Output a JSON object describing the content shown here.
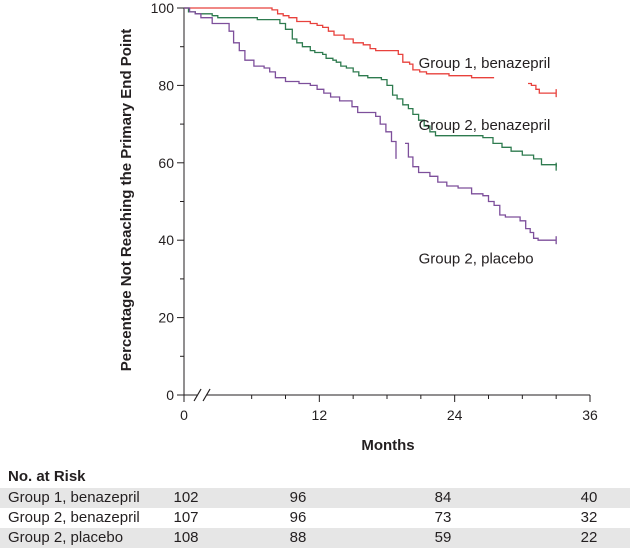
{
  "chart_data": {
    "type": "line",
    "xlabel": "Months",
    "ylabel": "Percentage Not Reaching the Primary End Point",
    "xlim": [
      0,
      36
    ],
    "ylim": [
      0,
      100
    ],
    "x_ticks": [
      "0",
      "12",
      "24",
      "36"
    ],
    "y_ticks": [
      "0",
      "20",
      "40",
      "60",
      "80",
      "100"
    ],
    "axis_break_on_x": true,
    "grid": false,
    "series": [
      {
        "name": "Group 1, benazepril",
        "color": "#e8413c",
        "segments": [
          [
            [
              0,
              100
            ],
            [
              7.5,
              100
            ],
            [
              7.8,
              99.5
            ],
            [
              8.3,
              98.5
            ],
            [
              8.8,
              98
            ],
            [
              9.3,
              97.5
            ],
            [
              10,
              96.5
            ],
            [
              11.2,
              96
            ],
            [
              11.8,
              95.5
            ],
            [
              12.3,
              95
            ],
            [
              12.8,
              94
            ],
            [
              13.3,
              93
            ],
            [
              14.2,
              92
            ],
            [
              15,
              91
            ],
            [
              15.9,
              90.5
            ],
            [
              16.5,
              89.5
            ],
            [
              17,
              89
            ],
            [
              18.6,
              89
            ],
            [
              19,
              88
            ],
            [
              19.4,
              86
            ],
            [
              20,
              85.5
            ],
            [
              20.3,
              84
            ],
            [
              20.9,
              83.5
            ],
            [
              21.5,
              83
            ],
            [
              23.5,
              82.5
            ],
            [
              24.5,
              82.5
            ],
            [
              25.5,
              82
            ],
            [
              27.5,
              82
            ]
          ],
          [
            [
              30.5,
              80.5
            ],
            [
              30.8,
              80
            ],
            [
              31.2,
              79
            ],
            [
              31.5,
              78
            ],
            [
              33,
              78
            ]
          ]
        ]
      },
      {
        "name": "Group 2, benazepril",
        "color": "#2e7b4f",
        "segments": [
          [
            [
              0,
              100
            ],
            [
              0.4,
              99
            ],
            [
              1,
              98.5
            ],
            [
              2.5,
              98
            ],
            [
              3,
              97.5
            ],
            [
              6.5,
              97
            ],
            [
              8.5,
              96
            ],
            [
              9,
              94.5
            ],
            [
              9.6,
              92
            ],
            [
              10,
              91
            ],
            [
              10.5,
              90
            ],
            [
              11.2,
              89
            ],
            [
              11.6,
              88.5
            ],
            [
              12.3,
              88
            ],
            [
              12.6,
              87
            ],
            [
              13.2,
              86.5
            ],
            [
              13.5,
              86
            ],
            [
              13.9,
              85
            ],
            [
              14.4,
              84.5
            ],
            [
              15,
              83.5
            ],
            [
              15.5,
              82.5
            ],
            [
              16.3,
              82
            ],
            [
              17.5,
              81.5
            ],
            [
              18,
              80
            ],
            [
              18.5,
              77.5
            ],
            [
              18.9,
              76.5
            ],
            [
              19.4,
              75
            ],
            [
              19.9,
              74
            ],
            [
              20.3,
              72.5
            ],
            [
              20.8,
              71
            ],
            [
              21.3,
              69.5
            ],
            [
              21.8,
              68
            ],
            [
              22.3,
              67
            ],
            [
              26.5,
              66.5
            ],
            [
              27.4,
              65
            ],
            [
              28.2,
              64
            ],
            [
              29,
              63
            ],
            [
              30,
              62
            ],
            [
              31,
              61
            ],
            [
              31.7,
              59.5
            ],
            [
              33,
              59
            ]
          ]
        ]
      },
      {
        "name": "Group 2, placebo",
        "color": "#7d4f9b",
        "segments": [
          [
            [
              0,
              100
            ],
            [
              0.5,
              99
            ],
            [
              1,
              98.5
            ],
            [
              1.5,
              97.5
            ],
            [
              2.5,
              96
            ],
            [
              4,
              94
            ],
            [
              4.4,
              91
            ],
            [
              4.9,
              89
            ],
            [
              5.4,
              86.5
            ],
            [
              6.2,
              85
            ],
            [
              7.1,
              84.5
            ],
            [
              7.6,
              83.5
            ],
            [
              8.1,
              82
            ],
            [
              9,
              81
            ],
            [
              10.2,
              80.5
            ],
            [
              11.2,
              80
            ],
            [
              11.8,
              79
            ],
            [
              12.4,
              78
            ],
            [
              13,
              77
            ],
            [
              13.8,
              76
            ],
            [
              14.9,
              74.5
            ],
            [
              15.4,
              73
            ],
            [
              17,
              72
            ],
            [
              17.4,
              70
            ],
            [
              17.9,
              68
            ],
            [
              18.4,
              65.5
            ],
            [
              18.8,
              61
            ]
          ],
          [
            [
              19.6,
              65
            ],
            [
              19.9,
              61.5
            ],
            [
              20.3,
              59
            ],
            [
              20.8,
              57.5
            ],
            [
              21.8,
              56.5
            ],
            [
              22.5,
              55
            ],
            [
              23.3,
              54
            ],
            [
              24.3,
              53.5
            ],
            [
              25.5,
              52
            ],
            [
              26.5,
              51.5
            ],
            [
              27,
              50
            ],
            [
              27.5,
              49
            ],
            [
              28,
              46.5
            ],
            [
              28.5,
              46
            ],
            [
              29.8,
              45
            ],
            [
              30.3,
              43
            ],
            [
              30.7,
              42
            ],
            [
              31,
              40.5
            ],
            [
              31.4,
              40
            ],
            [
              33,
              40
            ]
          ]
        ]
      }
    ]
  },
  "risk_table": {
    "title": "No. at Risk",
    "rows": [
      {
        "label": "Group 1, benazepril",
        "values": [
          "102",
          "96",
          "84",
          "40"
        ]
      },
      {
        "label": "Group 2, benazepril",
        "values": [
          "107",
          "96",
          "73",
          "32"
        ]
      },
      {
        "label": "Group 2, placebo",
        "values": [
          "108",
          "88",
          "59",
          "22"
        ]
      }
    ]
  }
}
